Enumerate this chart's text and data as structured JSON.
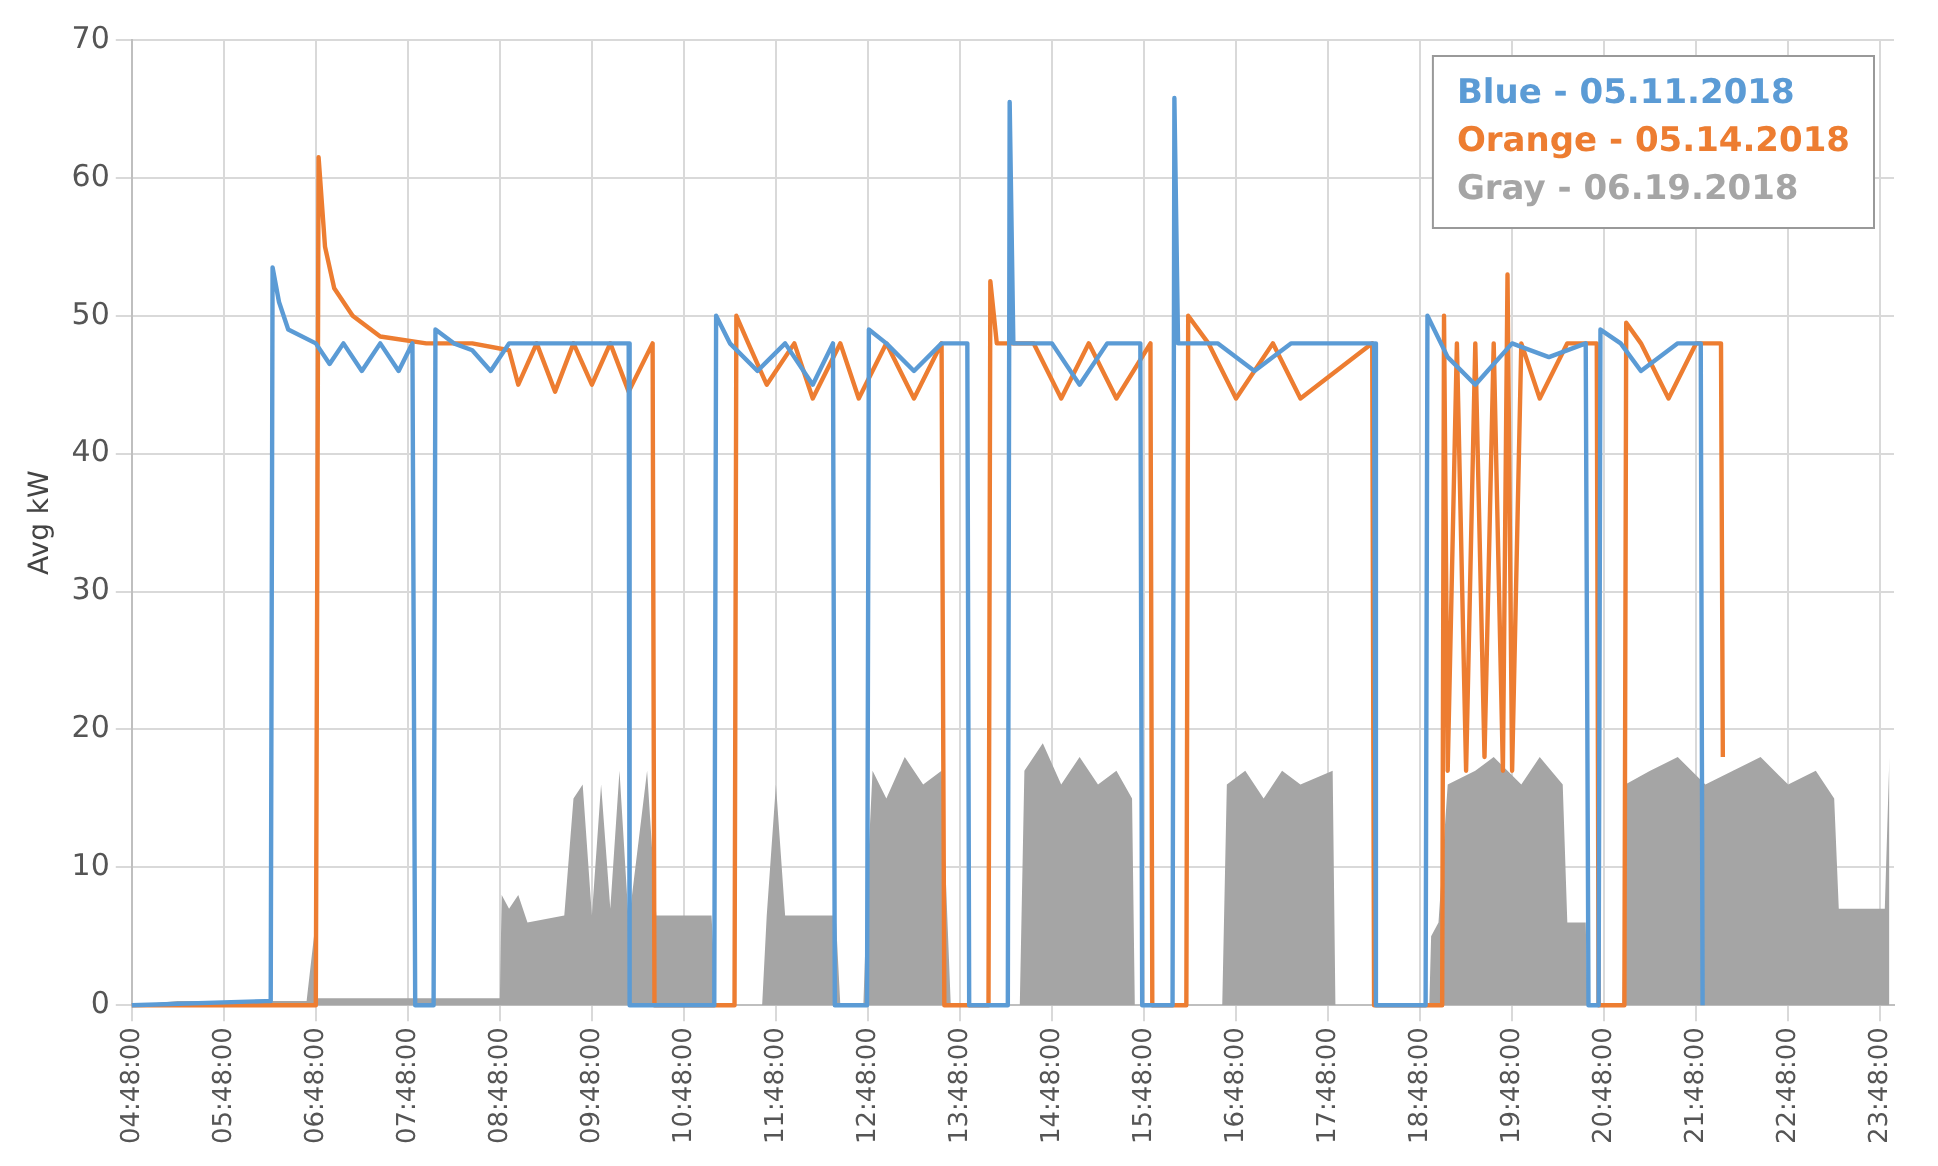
{
  "chart_data": {
    "type": "line",
    "ylabel": "Avg kW",
    "xlim": [
      4.8,
      23.95
    ],
    "xticks": [
      {
        "value": 4.8,
        "label": "04:48:00"
      },
      {
        "value": 5.8,
        "label": "05:48:00"
      },
      {
        "value": 6.8,
        "label": "06:48:00"
      },
      {
        "value": 7.8,
        "label": "07:48:00"
      },
      {
        "value": 8.8,
        "label": "08:48:00"
      },
      {
        "value": 9.8,
        "label": "09:48:00"
      },
      {
        "value": 10.8,
        "label": "10:48:00"
      },
      {
        "value": 11.8,
        "label": "11:48:00"
      },
      {
        "value": 12.8,
        "label": "12:48:00"
      },
      {
        "value": 13.8,
        "label": "13:48:00"
      },
      {
        "value": 14.8,
        "label": "14:48:00"
      },
      {
        "value": 15.8,
        "label": "15:48:00"
      },
      {
        "value": 16.8,
        "label": "16:48:00"
      },
      {
        "value": 17.8,
        "label": "17:48:00"
      },
      {
        "value": 18.8,
        "label": "18:48:00"
      },
      {
        "value": 19.8,
        "label": "19:48:00"
      },
      {
        "value": 20.8,
        "label": "20:48:00"
      },
      {
        "value": 21.8,
        "label": "21:48:00"
      },
      {
        "value": 22.8,
        "label": "22:48:00"
      },
      {
        "value": 23.8,
        "label": "23:48:00"
      }
    ],
    "ylim": [
      0,
      70
    ],
    "yticks": [
      0,
      10,
      20,
      30,
      40,
      50,
      60,
      70
    ],
    "grid": true,
    "legend": "top right",
    "marker": "none",
    "line_style": "solid",
    "series": [
      {
        "name": "Blue - 05.11.2018",
        "type": "line",
        "color": "#5b9bd5",
        "x": [
          4.8,
          6.25,
          6.31,
          6.33,
          6.4,
          6.5,
          6.8,
          6.95,
          7.1,
          7.3,
          7.5,
          7.7,
          7.85,
          7.88,
          8.08,
          8.1,
          8.3,
          8.5,
          8.7,
          8.9,
          9.3,
          9.6,
          10.0,
          10.2,
          10.21,
          11.13,
          11.15,
          11.3,
          11.6,
          11.9,
          12.2,
          12.42,
          12.44,
          12.79,
          12.81,
          13.0,
          13.3,
          13.6,
          13.88,
          13.9,
          14.32,
          14.34,
          14.38,
          14.8,
          15.1,
          15.4,
          15.76,
          15.78,
          16.11,
          16.13,
          16.17,
          16.6,
          17.0,
          17.4,
          18.3,
          18.32,
          18.86,
          18.88,
          19.1,
          19.4,
          19.8,
          20.2,
          20.6,
          20.63,
          20.74,
          20.76,
          20.98,
          21.2,
          21.6,
          21.85,
          21.87
        ],
        "values": [
          0,
          0.3,
          0.3,
          53.5,
          51,
          49,
          48,
          46.5,
          48,
          46,
          48,
          46,
          48,
          0,
          0,
          49,
          48,
          47.5,
          46,
          48,
          48,
          48,
          48,
          48,
          0,
          0,
          50,
          48,
          46,
          48,
          45,
          48,
          0,
          0,
          49,
          48,
          46,
          48,
          48,
          0,
          0,
          65.5,
          48,
          48,
          45,
          48,
          48,
          0,
          0,
          65.8,
          48,
          48,
          46,
          48,
          48,
          0,
          0,
          50,
          47,
          45,
          48,
          47,
          48,
          0,
          0,
          49,
          48,
          46,
          48,
          48,
          0
        ]
      },
      {
        "name": "Orange - 05.14.2018",
        "type": "line",
        "color": "#ed7d31",
        "x": [
          4.8,
          6.8,
          6.83,
          6.9,
          7.0,
          7.2,
          7.5,
          8.0,
          8.5,
          8.9,
          9.0,
          9.2,
          9.4,
          9.6,
          9.8,
          10.0,
          10.2,
          10.46,
          10.48,
          11.35,
          11.37,
          11.5,
          11.7,
          12.0,
          12.2,
          12.5,
          12.7,
          13.0,
          13.3,
          13.6,
          13.63,
          14.11,
          14.13,
          14.2,
          14.6,
          14.9,
          15.2,
          15.5,
          15.87,
          15.89,
          16.26,
          16.28,
          16.5,
          16.8,
          17.2,
          17.5,
          18.28,
          18.3,
          19.04,
          19.06,
          19.1,
          19.2,
          19.3,
          19.4,
          19.5,
          19.6,
          19.7,
          19.75,
          19.8,
          19.9,
          20.1,
          20.4,
          20.72,
          20.74,
          21.02,
          21.04,
          21.2,
          21.5,
          21.8,
          22.07,
          22.09
        ],
        "values": [
          0,
          0,
          61.5,
          55,
          52,
          50,
          48.5,
          48,
          48,
          47.5,
          45,
          48,
          44.5,
          48,
          45,
          48,
          44.5,
          48,
          0,
          0,
          50,
          48,
          45,
          48,
          44,
          48,
          44,
          48,
          44,
          48,
          0,
          0,
          52.5,
          48,
          48,
          44,
          48,
          44,
          48,
          0,
          0,
          50,
          48,
          44,
          48,
          44,
          48,
          0,
          0,
          50,
          17,
          48,
          17,
          48,
          18,
          48,
          17,
          53,
          17,
          48,
          44,
          48,
          48,
          0,
          0,
          49.5,
          48,
          44,
          48,
          48,
          18
        ]
      },
      {
        "name": "Gray - 06.19.2018",
        "type": "area",
        "color": "#a5a5a5",
        "x": [
          4.8,
          5.3,
          6.7,
          6.78,
          6.82,
          8.8,
          8.82,
          8.9,
          9.0,
          9.1,
          9.5,
          9.6,
          9.7,
          9.8,
          9.9,
          10.0,
          10.1,
          10.2,
          10.4,
          10.5,
          11.1,
          11.15,
          11.65,
          11.7,
          11.8,
          11.9,
          12.45,
          12.5,
          12.75,
          12.8,
          12.85,
          13.0,
          13.2,
          13.4,
          13.6,
          13.7,
          14.45,
          14.5,
          14.7,
          14.9,
          15.1,
          15.3,
          15.5,
          15.67,
          15.7,
          16.65,
          16.7,
          16.9,
          17.1,
          17.3,
          17.5,
          17.85,
          17.88,
          18.9,
          18.92,
          19.0,
          19.1,
          19.4,
          19.6,
          19.9,
          20.1,
          20.35,
          20.4,
          20.6,
          20.62,
          21.0,
          21.03,
          21.3,
          21.6,
          21.9,
          22.2,
          22.5,
          22.8,
          23.1,
          23.3,
          23.35,
          23.85,
          23.9
        ],
        "values": [
          0,
          0.3,
          0.3,
          5,
          0.5,
          0.5,
          8,
          7,
          8,
          6,
          6.5,
          15,
          16,
          6.5,
          16,
          7,
          17,
          6,
          17,
          6.5,
          6.5,
          0,
          0,
          6.5,
          16,
          6.5,
          6.5,
          0,
          0,
          10,
          17,
          15,
          18,
          16,
          17,
          0,
          0,
          17,
          19,
          16,
          18,
          16,
          17,
          15,
          0,
          0,
          16,
          17,
          15,
          17,
          16,
          17,
          0,
          0,
          5,
          6,
          16,
          17,
          18,
          16,
          18,
          16,
          6,
          6,
          0,
          0,
          16,
          17,
          18,
          16,
          17,
          18,
          16,
          17,
          15,
          7,
          7,
          18
        ]
      }
    ]
  }
}
